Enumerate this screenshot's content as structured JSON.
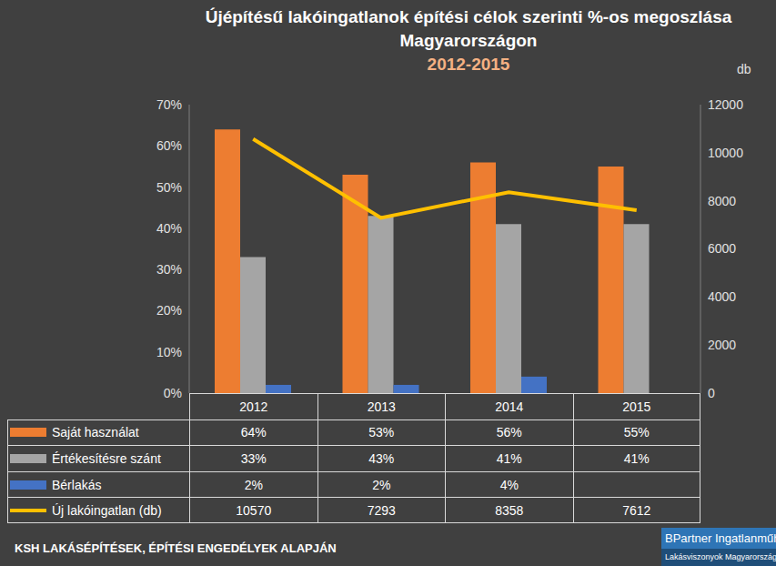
{
  "chart_data": {
    "type": "bar",
    "title": "Újépítésű lakóingatlanok építési célok szerinti %-os megoszlása Magyarországon",
    "subtitle": "2012-2015",
    "categories": [
      "2012",
      "2013",
      "2014",
      "2015"
    ],
    "series": [
      {
        "name": "Saját használat",
        "color": "#ED7D31",
        "values": [
          64,
          53,
          56,
          55
        ],
        "value_labels": [
          "64%",
          "53%",
          "56%",
          "55%"
        ]
      },
      {
        "name": "Értékesítésre szánt",
        "color": "#A5A5A5",
        "values": [
          33,
          43,
          41,
          41
        ],
        "value_labels": [
          "33%",
          "43%",
          "41%",
          "41%"
        ]
      },
      {
        "name": "Bérlakás",
        "color": "#4472C4",
        "values": [
          2,
          2,
          4,
          null
        ],
        "value_labels": [
          "2%",
          "2%",
          "4%",
          null
        ]
      },
      {
        "name": "Új lakóingatlan (db)",
        "color": "#FFC000",
        "type": "line",
        "axis": "y2",
        "values": [
          10570,
          7293,
          8358,
          7612
        ]
      }
    ],
    "ylim": [
      0,
      70
    ],
    "yticks": [
      {
        "value": 0,
        "label": "0%"
      },
      {
        "value": 10,
        "label": "10%"
      },
      {
        "value": 20,
        "label": "20%"
      },
      {
        "value": 30,
        "label": "30%"
      },
      {
        "value": 40,
        "label": "40%"
      },
      {
        "value": 50,
        "label": "50%"
      },
      {
        "value": 60,
        "label": "60%"
      },
      {
        "value": 70,
        "label": "70%"
      }
    ],
    "y2_label": "db",
    "y2lim": [
      0,
      12000
    ],
    "y2ticks": [
      0,
      2000,
      4000,
      6000,
      8000,
      10000,
      12000
    ],
    "grid": false,
    "source": "KSH LAKÁSÉPÍTÉSEK, ÉPÍTÉSI ENGEDÉLYEK ALAPJÁN",
    "annotations": [
      "BPartner Ingatlanműhely",
      "Lakásviszonyok Magyarországon"
    ]
  }
}
